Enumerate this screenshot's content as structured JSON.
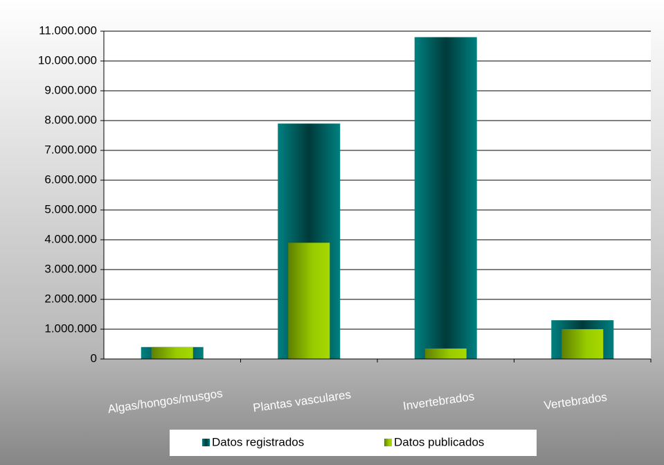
{
  "chart_data": {
    "type": "bar",
    "overlap": true,
    "categories": [
      "Algas/hongos/musgos",
      "Plantas vasculares",
      "Invertebrados",
      "Vertebrados"
    ],
    "series": [
      {
        "name": "Datos registrados",
        "color": "#008080",
        "values": [
          400000,
          7900000,
          10800000,
          1300000
        ]
      },
      {
        "name": "Datos publicados",
        "color": "#99cc00",
        "values": [
          400000,
          3900000,
          350000,
          1000000
        ]
      }
    ],
    "ylim": [
      0,
      11000000
    ],
    "yticks": [
      0,
      {
        "value": 1000000,
        "label": "1.000.000"
      },
      {
        "value": 2000000,
        "label": "2.000.000"
      },
      {
        "value": 3000000,
        "label": "3.000.000"
      },
      {
        "value": 4000000,
        "label": "4.000.000"
      },
      {
        "value": 5000000,
        "label": "5.000.000"
      },
      {
        "value": 6000000,
        "label": "6.000.000"
      },
      {
        "value": 7000000,
        "label": "7.000.000"
      },
      {
        "value": 8000000,
        "label": "8.000.000"
      },
      {
        "value": 9000000,
        "label": "9.000.000"
      },
      {
        "value": 10000000,
        "label": "10.000.000"
      },
      {
        "value": 11000000,
        "label": "11.000.000"
      }
    ],
    "grid": true,
    "legend": "bottom"
  }
}
